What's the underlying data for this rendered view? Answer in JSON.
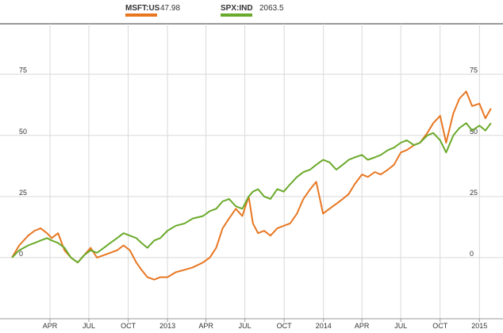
{
  "legend": [
    {
      "name": "MSFT:US",
      "value": "47.98",
      "color": "#e87722"
    },
    {
      "name": "SPX:IND",
      "value": "2063.5",
      "color": "#6aaa2a"
    }
  ],
  "chart_data": {
    "type": "line",
    "title": "",
    "xlabel": "",
    "ylabel": "",
    "ylim": [
      -25,
      95
    ],
    "xlim": [
      "2012-01-01",
      "2015-02-01"
    ],
    "grid": true,
    "legend_position": "top",
    "x_ticks": [
      {
        "date": "2012-04-01",
        "label": "APR"
      },
      {
        "date": "2012-07-01",
        "label": "JUL"
      },
      {
        "date": "2012-10-01",
        "label": "OCT"
      },
      {
        "date": "2013-01-01",
        "label": "2013"
      },
      {
        "date": "2013-04-01",
        "label": "APR"
      },
      {
        "date": "2013-07-01",
        "label": "JUL"
      },
      {
        "date": "2013-10-01",
        "label": "OCT"
      },
      {
        "date": "2014-01-01",
        "label": "2014"
      },
      {
        "date": "2014-04-01",
        "label": "APR"
      },
      {
        "date": "2014-07-01",
        "label": "JUL"
      },
      {
        "date": "2014-10-01",
        "label": "OCT"
      },
      {
        "date": "2015-01-01",
        "label": "2015"
      }
    ],
    "y_ticks": [
      {
        "value": 0,
        "label": "0"
      },
      {
        "value": 25,
        "label": "25"
      },
      {
        "value": 50,
        "label": "50"
      },
      {
        "value": 75,
        "label": "75"
      }
    ],
    "series": [
      {
        "name": "MSFT:US",
        "color": "#e87722",
        "points": [
          [
            "2012-01-03",
            0
          ],
          [
            "2012-01-20",
            5
          ],
          [
            "2012-02-10",
            9
          ],
          [
            "2012-02-25",
            11
          ],
          [
            "2012-03-10",
            12
          ],
          [
            "2012-03-25",
            10
          ],
          [
            "2012-04-05",
            8
          ],
          [
            "2012-04-20",
            10
          ],
          [
            "2012-05-05",
            3
          ],
          [
            "2012-05-20",
            0
          ],
          [
            "2012-06-05",
            -2
          ],
          [
            "2012-06-20",
            1
          ],
          [
            "2012-07-05",
            4
          ],
          [
            "2012-07-20",
            0
          ],
          [
            "2012-08-05",
            1
          ],
          [
            "2012-08-20",
            2
          ],
          [
            "2012-09-05",
            3
          ],
          [
            "2012-09-20",
            5
          ],
          [
            "2012-10-05",
            3
          ],
          [
            "2012-10-20",
            -2
          ],
          [
            "2012-11-01",
            -5
          ],
          [
            "2012-11-15",
            -8
          ],
          [
            "2012-12-01",
            -9
          ],
          [
            "2012-12-15",
            -8
          ],
          [
            "2013-01-01",
            -8
          ],
          [
            "2013-01-20",
            -6
          ],
          [
            "2013-02-10",
            -5
          ],
          [
            "2013-03-01",
            -4
          ],
          [
            "2013-03-25",
            -2
          ],
          [
            "2013-04-10",
            0
          ],
          [
            "2013-04-25",
            4
          ],
          [
            "2013-05-10",
            12
          ],
          [
            "2013-05-25",
            16
          ],
          [
            "2013-06-10",
            20
          ],
          [
            "2013-06-25",
            17
          ],
          [
            "2013-07-10",
            25
          ],
          [
            "2013-07-20",
            14
          ],
          [
            "2013-08-01",
            10
          ],
          [
            "2013-08-15",
            11
          ],
          [
            "2013-08-30",
            9
          ],
          [
            "2013-09-15",
            12
          ],
          [
            "2013-09-30",
            13
          ],
          [
            "2013-10-15",
            14
          ],
          [
            "2013-10-31",
            18
          ],
          [
            "2013-11-15",
            24
          ],
          [
            "2013-12-01",
            28
          ],
          [
            "2013-12-15",
            31
          ],
          [
            "2013-12-31",
            18
          ],
          [
            "2014-01-15",
            20
          ],
          [
            "2014-01-31",
            22
          ],
          [
            "2014-02-15",
            24
          ],
          [
            "2014-03-01",
            26
          ],
          [
            "2014-03-15",
            30
          ],
          [
            "2014-04-01",
            34
          ],
          [
            "2014-04-15",
            33
          ],
          [
            "2014-05-01",
            35
          ],
          [
            "2014-05-15",
            34
          ],
          [
            "2014-06-01",
            36
          ],
          [
            "2014-06-15",
            38
          ],
          [
            "2014-07-01",
            43
          ],
          [
            "2014-07-15",
            44
          ],
          [
            "2014-08-01",
            46
          ],
          [
            "2014-08-15",
            47
          ],
          [
            "2014-09-01",
            51
          ],
          [
            "2014-09-15",
            55
          ],
          [
            "2014-10-01",
            58
          ],
          [
            "2014-10-15",
            47
          ],
          [
            "2014-11-01",
            59
          ],
          [
            "2014-11-15",
            65
          ],
          [
            "2014-12-01",
            68
          ],
          [
            "2014-12-15",
            62
          ],
          [
            "2015-01-01",
            63
          ],
          [
            "2015-01-15",
            57
          ],
          [
            "2015-01-28",
            61
          ]
        ]
      },
      {
        "name": "SPX:IND",
        "color": "#6aaa2a",
        "points": [
          [
            "2012-01-03",
            0
          ],
          [
            "2012-01-20",
            3
          ],
          [
            "2012-02-10",
            5
          ],
          [
            "2012-02-25",
            6
          ],
          [
            "2012-03-10",
            7
          ],
          [
            "2012-03-25",
            8
          ],
          [
            "2012-04-05",
            7
          ],
          [
            "2012-04-20",
            6
          ],
          [
            "2012-05-05",
            4
          ],
          [
            "2012-05-20",
            0
          ],
          [
            "2012-06-05",
            -2
          ],
          [
            "2012-06-20",
            1
          ],
          [
            "2012-07-05",
            3
          ],
          [
            "2012-07-20",
            2
          ],
          [
            "2012-08-05",
            4
          ],
          [
            "2012-08-20",
            6
          ],
          [
            "2012-09-05",
            8
          ],
          [
            "2012-09-20",
            10
          ],
          [
            "2012-10-05",
            9
          ],
          [
            "2012-10-20",
            8
          ],
          [
            "2012-11-01",
            6
          ],
          [
            "2012-11-15",
            4
          ],
          [
            "2012-12-01",
            7
          ],
          [
            "2012-12-15",
            8
          ],
          [
            "2013-01-01",
            11
          ],
          [
            "2013-01-20",
            13
          ],
          [
            "2013-02-10",
            14
          ],
          [
            "2013-03-01",
            16
          ],
          [
            "2013-03-25",
            17
          ],
          [
            "2013-04-10",
            19
          ],
          [
            "2013-04-25",
            20
          ],
          [
            "2013-05-10",
            23
          ],
          [
            "2013-05-25",
            24
          ],
          [
            "2013-06-10",
            21
          ],
          [
            "2013-06-25",
            20
          ],
          [
            "2013-07-10",
            25
          ],
          [
            "2013-07-20",
            27
          ],
          [
            "2013-08-01",
            28
          ],
          [
            "2013-08-15",
            25
          ],
          [
            "2013-08-30",
            24
          ],
          [
            "2013-09-15",
            28
          ],
          [
            "2013-09-30",
            27
          ],
          [
            "2013-10-15",
            30
          ],
          [
            "2013-10-31",
            33
          ],
          [
            "2013-11-15",
            35
          ],
          [
            "2013-12-01",
            36
          ],
          [
            "2013-12-15",
            38
          ],
          [
            "2013-12-31",
            40
          ],
          [
            "2014-01-15",
            39
          ],
          [
            "2014-01-31",
            36
          ],
          [
            "2014-02-15",
            38
          ],
          [
            "2014-03-01",
            40
          ],
          [
            "2014-03-15",
            41
          ],
          [
            "2014-04-01",
            42
          ],
          [
            "2014-04-15",
            40
          ],
          [
            "2014-05-01",
            41
          ],
          [
            "2014-05-15",
            42
          ],
          [
            "2014-06-01",
            44
          ],
          [
            "2014-06-15",
            45
          ],
          [
            "2014-07-01",
            47
          ],
          [
            "2014-07-15",
            48
          ],
          [
            "2014-08-01",
            46
          ],
          [
            "2014-08-15",
            47
          ],
          [
            "2014-09-01",
            50
          ],
          [
            "2014-09-15",
            51
          ],
          [
            "2014-10-01",
            48
          ],
          [
            "2014-10-15",
            43
          ],
          [
            "2014-11-01",
            50
          ],
          [
            "2014-11-15",
            53
          ],
          [
            "2014-12-01",
            55
          ],
          [
            "2014-12-15",
            52
          ],
          [
            "2015-01-01",
            54
          ],
          [
            "2015-01-15",
            52
          ],
          [
            "2015-01-28",
            55
          ]
        ]
      }
    ]
  }
}
